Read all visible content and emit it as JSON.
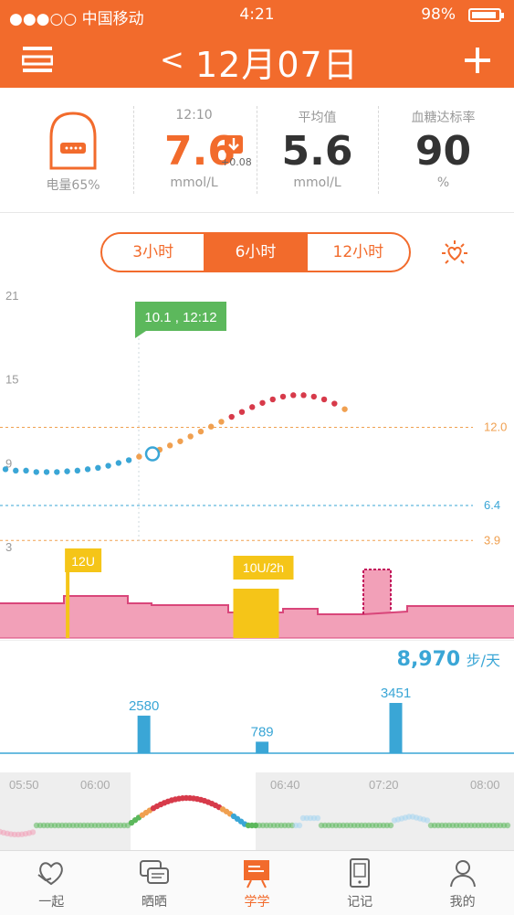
{
  "status_bar": {
    "carrier": "●●●○○ 中国移动",
    "time": "4:21",
    "battery": "98%"
  },
  "header": {
    "date": "12月07日"
  },
  "stats": {
    "device_battery": "电量65%",
    "latest": {
      "time": "12:10",
      "value": "7.6",
      "delta": "+0.08",
      "unit": "mmol/L",
      "trend": "down-arrow-icon"
    },
    "average": {
      "label": "平均值",
      "value": "5.6",
      "unit": "mmol/L"
    },
    "compliance": {
      "label": "血糖达标率",
      "value": "90",
      "unit": "%"
    }
  },
  "range_selector": {
    "options": [
      "3小时",
      "6小时",
      "12小时"
    ],
    "selected": "6小时"
  },
  "chart_data": {
    "type": "scatter",
    "y_ticks": [
      "21",
      "15",
      "9",
      "3"
    ],
    "ylim": [
      3,
      21
    ],
    "thresholds": [
      {
        "label": "12.0",
        "value": 12.0,
        "color": "#f0a050"
      },
      {
        "label": "6.4",
        "value": 6.4,
        "color": "#3aa6d6"
      },
      {
        "label": "3.9",
        "value": 3.9,
        "color": "#f0a050"
      }
    ],
    "tooltip": "10.1 , 12:12",
    "marker": {
      "x": 0.27,
      "y": 10.1
    },
    "points": [
      [
        0,
        9.0
      ],
      [
        0.02,
        8.9
      ],
      [
        0.04,
        8.9
      ],
      [
        0.06,
        8.8
      ],
      [
        0.08,
        8.8
      ],
      [
        0.1,
        8.8
      ],
      [
        0.12,
        8.85
      ],
      [
        0.14,
        8.9
      ],
      [
        0.16,
        9.0
      ],
      [
        0.18,
        9.1
      ],
      [
        0.2,
        9.25
      ],
      [
        0.22,
        9.45
      ],
      [
        0.24,
        9.65
      ],
      [
        0.26,
        9.9
      ],
      [
        0.28,
        10.15
      ],
      [
        0.3,
        10.4
      ],
      [
        0.32,
        10.7
      ],
      [
        0.34,
        11.0
      ],
      [
        0.36,
        11.35
      ],
      [
        0.38,
        11.7
      ],
      [
        0.4,
        12.05
      ],
      [
        0.42,
        12.4
      ],
      [
        0.44,
        12.75
      ],
      [
        0.46,
        13.1
      ],
      [
        0.48,
        13.45
      ],
      [
        0.5,
        13.75
      ],
      [
        0.52,
        14.0
      ],
      [
        0.54,
        14.2
      ],
      [
        0.56,
        14.3
      ],
      [
        0.58,
        14.3
      ],
      [
        0.6,
        14.2
      ],
      [
        0.62,
        14.0
      ],
      [
        0.64,
        13.7
      ],
      [
        0.66,
        13.3
      ]
    ],
    "insulin": [
      {
        "label": "12U",
        "x": 0.24,
        "type": "bolus"
      },
      {
        "label": "10U/2h",
        "x": 0.5,
        "type": "basal"
      }
    ]
  },
  "steps": {
    "total": "8,970",
    "unit": "步/天",
    "bars": [
      {
        "x": 0.28,
        "value": 2580,
        "label": "2580"
      },
      {
        "x": 0.51,
        "value": 789,
        "label": "789"
      },
      {
        "x": 0.77,
        "value": 3451,
        "label": "3451"
      }
    ]
  },
  "overview": {
    "times": [
      "05:50",
      "06:00",
      "06:40",
      "07:20",
      "08:00"
    ]
  },
  "tabs": [
    {
      "label": "一起",
      "icon": "heart-hands-icon"
    },
    {
      "label": "晒晒",
      "icon": "chat-bubbles-icon"
    },
    {
      "label": "学学",
      "icon": "presentation-board-icon",
      "active": true
    },
    {
      "label": "记记",
      "icon": "phone-notebook-icon"
    },
    {
      "label": "我的",
      "icon": "person-icon"
    }
  ],
  "colors": {
    "accent": "#f26b2c",
    "low": "#3aa6d6",
    "high": "#d73a4a",
    "warn": "#f0a050",
    "green": "#5cb85c",
    "insulin": "#f5c518",
    "basal": "#ef8fa8"
  }
}
